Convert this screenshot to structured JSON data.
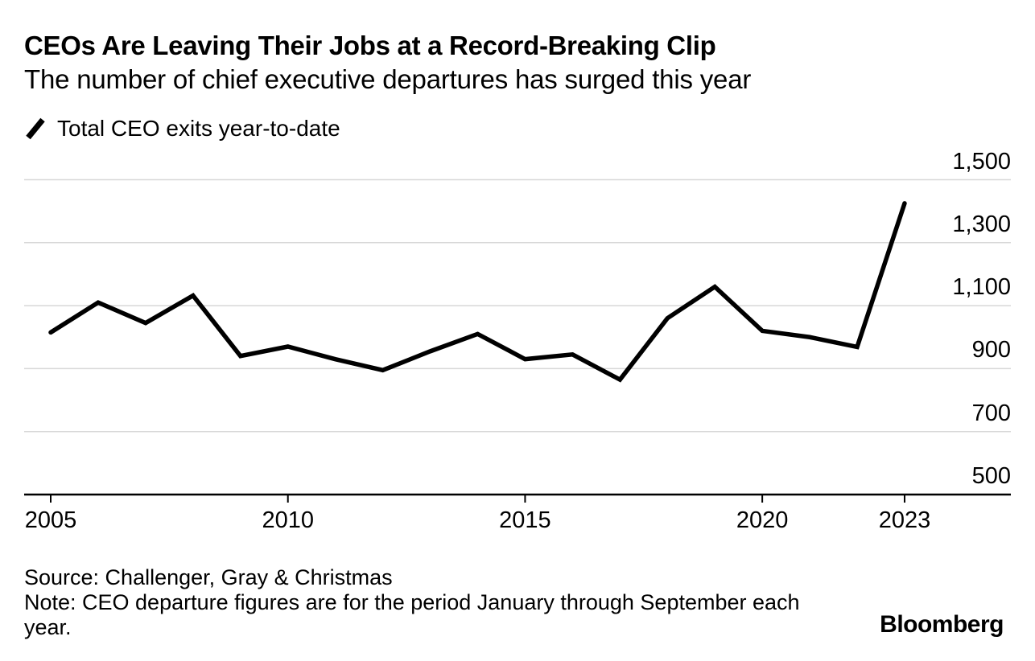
{
  "header": {
    "title": "CEOs Are Leaving Their Jobs at a Record-Breaking Clip",
    "subtitle": "The number of chief executive departures has surged this year"
  },
  "legend": {
    "icon": "line-slash-icon",
    "label": "Total CEO exits year-to-date"
  },
  "chart_data": {
    "type": "line",
    "title": "CEOs Are Leaving Their Jobs at a Record-Breaking Clip",
    "subtitle": "The number of chief executive departures has surged this year",
    "xlabel": "",
    "ylabel": "",
    "x": [
      2005,
      2006,
      2007,
      2008,
      2009,
      2010,
      2011,
      2012,
      2013,
      2014,
      2015,
      2016,
      2017,
      2018,
      2019,
      2020,
      2021,
      2022,
      2023
    ],
    "series": [
      {
        "name": "Total CEO exits year-to-date",
        "values": [
          1015,
          1110,
          1045,
          1132,
          940,
          970,
          930,
          895,
          955,
          1010,
          930,
          945,
          865,
          1060,
          1160,
          1020,
          1000,
          969,
          1425
        ]
      }
    ],
    "x_ticks": [
      2005,
      2010,
      2015,
      2020,
      2023
    ],
    "y_ticks": [
      500,
      700,
      900,
      1100,
      1300,
      1500
    ],
    "xlim": [
      2004.44,
      2025.24
    ],
    "ylim": [
      500,
      1500
    ],
    "grid": true,
    "y_axis_side": "right",
    "legend_position": "top-left"
  },
  "footer": {
    "source": "Source: Challenger, Gray & Christmas",
    "note": "Note: CEO departure figures are for the period January through September each year."
  },
  "branding": {
    "logo": "Bloomberg"
  },
  "colors": {
    "line": "#000000",
    "grid": "#d8d8d8",
    "axis": "#000000",
    "text": "#000000",
    "background": "#ffffff"
  }
}
